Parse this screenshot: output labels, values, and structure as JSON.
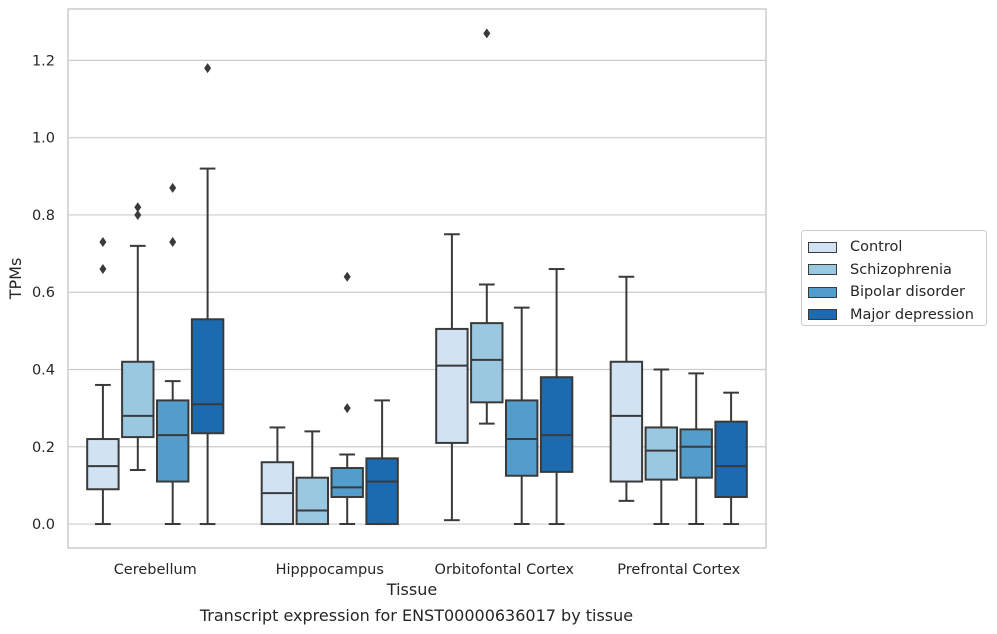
{
  "chart_data": {
    "type": "boxplot",
    "xlabel": "Tissue",
    "ylabel": "TPMs",
    "ylim": [
      -0.062,
      1.333
    ],
    "yticks": [
      0.0,
      0.2,
      0.4,
      0.6,
      0.8,
      1.0,
      1.2
    ],
    "ytick_labels": [
      "0.0",
      "0.2",
      "0.4",
      "0.6",
      "0.8",
      "1.0",
      "1.2"
    ],
    "grid": "horizontal",
    "legend_position": "right",
    "categories": [
      "Cerebellum",
      "Hipppocampus",
      "Orbitofontal Cortex",
      "Prefrontal Cortex"
    ],
    "series": [
      {
        "name": "Control",
        "color": "#d1e2f3",
        "boxes": [
          {
            "whislo": 0.0,
            "q1": 0.09,
            "med": 0.15,
            "q3": 0.22,
            "whishi": 0.36,
            "fliers": [
              0.66,
              0.73
            ]
          },
          {
            "whislo": 0.0,
            "q1": 0.0,
            "med": 0.08,
            "q3": 0.16,
            "whishi": 0.25,
            "fliers": []
          },
          {
            "whislo": 0.01,
            "q1": 0.21,
            "med": 0.41,
            "q3": 0.505,
            "whishi": 0.75,
            "fliers": []
          },
          {
            "whislo": 0.06,
            "q1": 0.11,
            "med": 0.28,
            "q3": 0.42,
            "whishi": 0.64,
            "fliers": []
          }
        ]
      },
      {
        "name": "Schizophrenia",
        "color": "#9ac8e0",
        "boxes": [
          {
            "whislo": 0.14,
            "q1": 0.225,
            "med": 0.28,
            "q3": 0.42,
            "whishi": 0.72,
            "fliers": [
              0.8,
              0.82
            ]
          },
          {
            "whislo": 0.0,
            "q1": 0.0,
            "med": 0.035,
            "q3": 0.12,
            "whishi": 0.24,
            "fliers": []
          },
          {
            "whislo": 0.26,
            "q1": 0.315,
            "med": 0.425,
            "q3": 0.52,
            "whishi": 0.62,
            "fliers": [
              1.27
            ]
          },
          {
            "whislo": 0.0,
            "q1": 0.115,
            "med": 0.19,
            "q3": 0.25,
            "whishi": 0.4,
            "fliers": []
          }
        ]
      },
      {
        "name": "Bipolar disorder",
        "color": "#529dcc",
        "boxes": [
          {
            "whislo": 0.0,
            "q1": 0.11,
            "med": 0.23,
            "q3": 0.32,
            "whishi": 0.37,
            "fliers": [
              0.73,
              0.87
            ]
          },
          {
            "whislo": 0.0,
            "q1": 0.07,
            "med": 0.095,
            "q3": 0.145,
            "whishi": 0.18,
            "fliers": [
              0.3,
              0.64
            ]
          },
          {
            "whislo": 0.0,
            "q1": 0.125,
            "med": 0.22,
            "q3": 0.32,
            "whishi": 0.56,
            "fliers": []
          },
          {
            "whislo": 0.0,
            "q1": 0.12,
            "med": 0.2,
            "q3": 0.245,
            "whishi": 0.39,
            "fliers": []
          }
        ]
      },
      {
        "name": "Major depression",
        "color": "#1c6aaf",
        "boxes": [
          {
            "whislo": 0.0,
            "q1": 0.235,
            "med": 0.31,
            "q3": 0.53,
            "whishi": 0.92,
            "fliers": [
              1.18
            ]
          },
          {
            "whislo": 0.0,
            "q1": 0.0,
            "med": 0.11,
            "q3": 0.17,
            "whishi": 0.32,
            "fliers": []
          },
          {
            "whislo": 0.0,
            "q1": 0.135,
            "med": 0.23,
            "q3": 0.38,
            "whishi": 0.66,
            "fliers": []
          },
          {
            "whislo": 0.0,
            "q1": 0.07,
            "med": 0.15,
            "q3": 0.265,
            "whishi": 0.34,
            "fliers": []
          }
        ]
      }
    ]
  },
  "caption": "Transcript expression for ENST00000636017 by tissue"
}
